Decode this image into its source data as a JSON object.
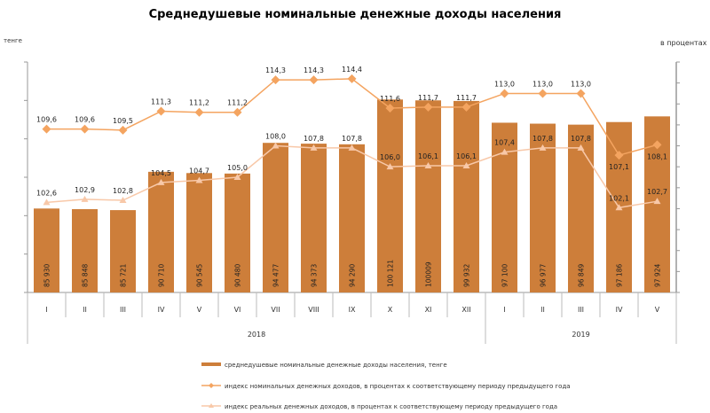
{
  "chart_data": {
    "type": "bar+line",
    "title": "Среднедушевые номинальные денежные доходы населения",
    "left_axis_label": "тенге",
    "right_axis_label": "в процентах",
    "left_ylim": [
      75000,
      105000
    ],
    "right_ylim": [
      94,
      116
    ],
    "grid": false,
    "legend_position": "bottom",
    "categories": [
      "I",
      "II",
      "III",
      "IV",
      "V",
      "VI",
      "VII",
      "VIII",
      "IX",
      "X",
      "XI",
      "XII",
      "I",
      "II",
      "III",
      "IV",
      "V"
    ],
    "years": [
      {
        "label": "2018",
        "count": 12
      },
      {
        "label": "2019",
        "count": 5
      }
    ],
    "series": [
      {
        "name": "среднедушевые номинальные денежные доходы населения, тенге",
        "kind": "bar",
        "axis": "left",
        "color": "#CD7E3A",
        "values": [
          85930,
          85848,
          85721,
          90710,
          90545,
          90480,
          94477,
          94373,
          94290,
          100121,
          100009,
          99932,
          97100,
          96977,
          96849,
          97186,
          97924
        ],
        "labels": [
          "85 930",
          "85 848",
          "85 721",
          "90 710",
          "90 545",
          "90 480",
          "94 477",
          "94 373",
          "94 290",
          "100 121",
          "100009",
          "99 932",
          "97 100",
          "96 977",
          "96 849",
          "97 186",
          "97 924"
        ]
      },
      {
        "name": "индекс номинальных денежных доходов, в процентах к соответствующему периоду предыдущего года",
        "kind": "line",
        "marker": "diamond",
        "axis": "right",
        "color": "#F4A460",
        "values": [
          109.6,
          109.6,
          109.5,
          111.3,
          111.2,
          111.2,
          114.3,
          114.3,
          114.4,
          111.6,
          111.7,
          111.7,
          113.0,
          113.0,
          113.0,
          107.1,
          108.1
        ]
      },
      {
        "name": "индекс реальных денежных доходов, в процентах к соответствующему периоду предыдущего года",
        "kind": "line",
        "marker": "triangle",
        "axis": "right",
        "color": "#F8C8A8",
        "values": [
          102.6,
          102.9,
          102.8,
          104.5,
          104.7,
          105.0,
          108.0,
          107.8,
          107.8,
          106.0,
          106.1,
          106.1,
          107.4,
          107.8,
          107.8,
          102.1,
          102.7
        ]
      }
    ]
  }
}
